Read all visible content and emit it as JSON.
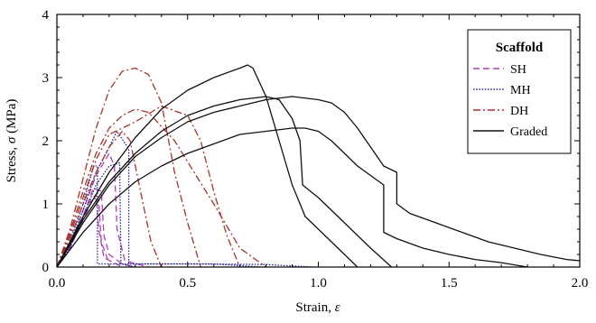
{
  "chart_data": {
    "type": "line",
    "xlabel_text": "Strain, ",
    "xlabel_symbol": "ε",
    "ylabel_text": "Stress, ",
    "ylabel_symbol": "σ",
    "ylabel_unit": " (MPa)",
    "xlim": [
      0,
      2.0
    ],
    "ylim": [
      0,
      4
    ],
    "x_ticks": [
      0,
      0.5,
      1.0,
      1.5,
      2.0
    ],
    "x_tick_labels": [
      "0.0",
      "0.5",
      "1.0",
      "1.5",
      "2.0"
    ],
    "y_ticks": [
      0,
      1,
      2,
      3,
      4
    ],
    "y_tick_labels": [
      "0",
      "1",
      "2",
      "3",
      "4"
    ],
    "grid": false,
    "legend": {
      "title": "Scaffold",
      "placement": "top-right",
      "entries": [
        {
          "name": "SH",
          "color": "#b040b0",
          "dash": "7,4"
        },
        {
          "name": "MH",
          "color": "#2c2c9c",
          "dash": "1.6,1.6"
        },
        {
          "name": "DH",
          "color": "#a83228",
          "dash": "8,3,2,3"
        },
        {
          "name": "Graded",
          "color": "#111111",
          "dash": ""
        }
      ]
    },
    "series": [
      {
        "name": "SH",
        "color": "#b040b0",
        "dash": "7,4",
        "curves": [
          [
            [
              0,
              0
            ],
            [
              0.05,
              0.3
            ],
            [
              0.1,
              0.8
            ],
            [
              0.14,
              1.25
            ],
            [
              0.17,
              1.2
            ],
            [
              0.18,
              0.5
            ],
            [
              0.2,
              0.2
            ],
            [
              0.25,
              0.05
            ],
            [
              0.3,
              0
            ]
          ],
          [
            [
              0,
              0
            ],
            [
              0.05,
              0.35
            ],
            [
              0.1,
              0.9
            ],
            [
              0.15,
              1.45
            ],
            [
              0.2,
              1.8
            ],
            [
              0.22,
              1.6
            ],
            [
              0.23,
              0.6
            ],
            [
              0.26,
              0.1
            ],
            [
              0.35,
              0
            ]
          ],
          [
            [
              0,
              0
            ],
            [
              0.05,
              0.3
            ],
            [
              0.1,
              0.75
            ],
            [
              0.14,
              1.1
            ],
            [
              0.16,
              1.05
            ],
            [
              0.17,
              0.4
            ],
            [
              0.2,
              0.05
            ]
          ],
          [
            [
              0,
              0
            ],
            [
              0.04,
              0.25
            ],
            [
              0.08,
              0.6
            ],
            [
              0.12,
              1.0
            ],
            [
              0.15,
              1.15
            ],
            [
              0.16,
              0.6
            ],
            [
              0.18,
              0.15
            ],
            [
              0.25,
              0
            ]
          ]
        ]
      },
      {
        "name": "MH",
        "color": "#2c2c9c",
        "dash": "1.6,1.6",
        "curves": [
          [
            [
              0,
              0
            ],
            [
              0.05,
              0.4
            ],
            [
              0.1,
              1.0
            ],
            [
              0.14,
              1.6
            ],
            [
              0.155,
              1.6
            ],
            [
              0.155,
              0.05
            ],
            [
              0.3,
              0.05
            ],
            [
              0.5,
              0.05
            ],
            [
              0.8,
              0.04
            ],
            [
              0.98,
              0
            ]
          ],
          [
            [
              0,
              0
            ],
            [
              0.05,
              0.35
            ],
            [
              0.1,
              0.9
            ],
            [
              0.15,
              1.5
            ],
            [
              0.2,
              1.9
            ],
            [
              0.23,
              2.15
            ],
            [
              0.27,
              1.9
            ],
            [
              0.275,
              1.85
            ],
            [
              0.275,
              0.05
            ],
            [
              0.6,
              0.05
            ],
            [
              0.78,
              0
            ]
          ],
          [
            [
              0,
              0
            ],
            [
              0.05,
              0.3
            ],
            [
              0.1,
              0.8
            ],
            [
              0.15,
              1.3
            ],
            [
              0.2,
              1.6
            ],
            [
              0.24,
              1.65
            ],
            [
              0.245,
              0.05
            ],
            [
              0.3,
              0
            ]
          ]
        ]
      },
      {
        "name": "DH",
        "color": "#a83228",
        "dash": "8,3,2,3",
        "curves": [
          [
            [
              0,
              0
            ],
            [
              0.05,
              0.6
            ],
            [
              0.1,
              1.4
            ],
            [
              0.15,
              2.2
            ],
            [
              0.2,
              2.8
            ],
            [
              0.25,
              3.1
            ],
            [
              0.3,
              3.15
            ],
            [
              0.35,
              3.05
            ],
            [
              0.4,
              2.6
            ],
            [
              0.45,
              1.5
            ],
            [
              0.5,
              0.7
            ],
            [
              0.55,
              0
            ]
          ],
          [
            [
              0,
              0
            ],
            [
              0.05,
              0.55
            ],
            [
              0.1,
              1.2
            ],
            [
              0.15,
              1.8
            ],
            [
              0.2,
              2.2
            ],
            [
              0.25,
              2.4
            ],
            [
              0.3,
              2.5
            ],
            [
              0.35,
              2.45
            ],
            [
              0.45,
              2.0
            ],
            [
              0.6,
              1.0
            ],
            [
              0.7,
              0.3
            ],
            [
              0.8,
              0
            ]
          ],
          [
            [
              0,
              0
            ],
            [
              0.05,
              0.5
            ],
            [
              0.1,
              1.1
            ],
            [
              0.15,
              1.7
            ],
            [
              0.2,
              2.1
            ],
            [
              0.3,
              2.3
            ],
            [
              0.4,
              2.55
            ],
            [
              0.5,
              2.4
            ],
            [
              0.55,
              2.0
            ],
            [
              0.6,
              1.2
            ],
            [
              0.65,
              0.5
            ],
            [
              0.7,
              0
            ]
          ],
          [
            [
              0,
              0
            ],
            [
              0.05,
              0.45
            ],
            [
              0.1,
              1.0
            ],
            [
              0.15,
              1.5
            ],
            [
              0.2,
              1.9
            ],
            [
              0.25,
              2.15
            ],
            [
              0.28,
              2.0
            ],
            [
              0.32,
              1.2
            ],
            [
              0.36,
              0.4
            ],
            [
              0.4,
              0
            ]
          ]
        ]
      },
      {
        "name": "Graded",
        "color": "#111111",
        "dash": "",
        "curves": [
          [
            [
              0,
              0
            ],
            [
              0.1,
              0.8
            ],
            [
              0.2,
              1.5
            ],
            [
              0.3,
              2.05
            ],
            [
              0.4,
              2.5
            ],
            [
              0.5,
              2.8
            ],
            [
              0.6,
              3.0
            ],
            [
              0.7,
              3.15
            ],
            [
              0.73,
              3.2
            ],
            [
              0.75,
              3.15
            ],
            [
              0.8,
              2.7
            ],
            [
              0.85,
              2.0
            ],
            [
              0.9,
              1.3
            ],
            [
              0.95,
              0.8
            ],
            [
              1.05,
              0.4
            ],
            [
              1.15,
              0
            ]
          ],
          [
            [
              0,
              0
            ],
            [
              0.1,
              0.75
            ],
            [
              0.2,
              1.35
            ],
            [
              0.3,
              1.8
            ],
            [
              0.4,
              2.15
            ],
            [
              0.5,
              2.4
            ],
            [
              0.6,
              2.55
            ],
            [
              0.7,
              2.65
            ],
            [
              0.8,
              2.7
            ],
            [
              0.85,
              2.65
            ],
            [
              0.9,
              2.35
            ],
            [
              0.93,
              2.0
            ],
            [
              0.94,
              1.3
            ],
            [
              1.0,
              1.1
            ],
            [
              1.1,
              0.7
            ],
            [
              1.2,
              0.3
            ],
            [
              1.28,
              0
            ]
          ],
          [
            [
              0,
              0
            ],
            [
              0.1,
              0.7
            ],
            [
              0.2,
              1.3
            ],
            [
              0.3,
              1.75
            ],
            [
              0.4,
              2.05
            ],
            [
              0.5,
              2.3
            ],
            [
              0.6,
              2.45
            ],
            [
              0.7,
              2.55
            ],
            [
              0.8,
              2.65
            ],
            [
              0.9,
              2.7
            ],
            [
              1.0,
              2.65
            ],
            [
              1.05,
              2.6
            ],
            [
              1.1,
              2.45
            ],
            [
              1.15,
              2.2
            ],
            [
              1.2,
              1.9
            ],
            [
              1.25,
              1.6
            ],
            [
              1.3,
              1.5
            ],
            [
              1.3,
              1.0
            ],
            [
              1.35,
              0.85
            ],
            [
              1.45,
              0.7
            ],
            [
              1.55,
              0.55
            ],
            [
              1.65,
              0.4
            ],
            [
              1.75,
              0.3
            ],
            [
              1.85,
              0.2
            ],
            [
              1.95,
              0.12
            ],
            [
              2.0,
              0.1
            ]
          ],
          [
            [
              0,
              0
            ],
            [
              0.1,
              0.55
            ],
            [
              0.2,
              1.0
            ],
            [
              0.3,
              1.35
            ],
            [
              0.4,
              1.6
            ],
            [
              0.5,
              1.8
            ],
            [
              0.6,
              1.95
            ],
            [
              0.7,
              2.1
            ],
            [
              0.8,
              2.15
            ],
            [
              0.9,
              2.2
            ],
            [
              0.95,
              2.2
            ],
            [
              1.0,
              2.15
            ],
            [
              1.05,
              2.0
            ],
            [
              1.1,
              1.8
            ],
            [
              1.15,
              1.6
            ],
            [
              1.2,
              1.45
            ],
            [
              1.25,
              1.3
            ],
            [
              1.25,
              0.55
            ],
            [
              1.3,
              0.45
            ],
            [
              1.4,
              0.3
            ],
            [
              1.5,
              0.2
            ],
            [
              1.6,
              0.12
            ],
            [
              1.7,
              0.07
            ],
            [
              1.8,
              0
            ]
          ]
        ]
      }
    ]
  }
}
